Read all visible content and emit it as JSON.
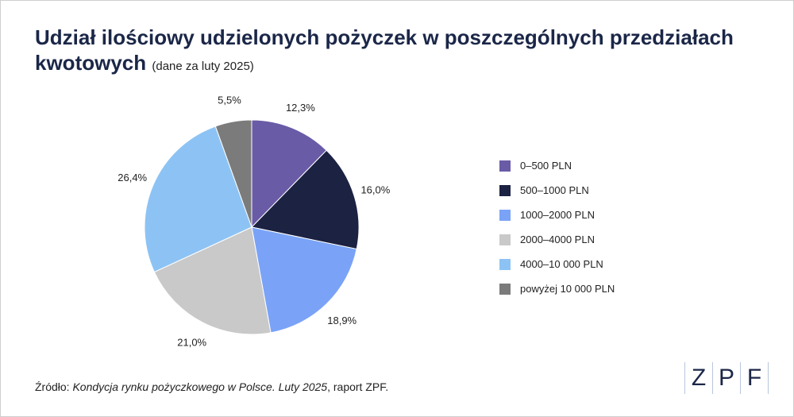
{
  "title": {
    "main": "Udział ilościowy udzielonych pożyczek w poszczególnych przedziałach kwotowych",
    "sub": "(dane za luty 2025)"
  },
  "chart_data": {
    "type": "pie",
    "slices": [
      {
        "label": "0–500 PLN",
        "value": 12.3,
        "value_label": "12,3%",
        "color": "#6a5ba7"
      },
      {
        "label": "500–1000 PLN",
        "value": 16.0,
        "value_label": "16,0%",
        "color": "#1b2242"
      },
      {
        "label": "1000–2000 PLN",
        "value": 18.9,
        "value_label": "18,9%",
        "color": "#7aa3f7"
      },
      {
        "label": "2000–4000 PLN",
        "value": 21.0,
        "value_label": "21,0%",
        "color": "#c9c9c9"
      },
      {
        "label": "4000–10 000 PLN",
        "value": 26.4,
        "value_label": "26,4%",
        "color": "#8dc3f4"
      },
      {
        "label": "powyżej 10 000 PLN",
        "value": 5.5,
        "value_label": "5,5%",
        "color": "#7b7b7b"
      }
    ],
    "start_angle": "12 o'clock",
    "direction": "clockwise",
    "legend_position": "right"
  },
  "source": {
    "prefix": "Źródło: ",
    "title": "Kondycja rynku pożyczkowego w Polsce. Luty 2025",
    "suffix": ", raport ZPF."
  },
  "logo": {
    "letters": [
      "Z",
      "P",
      "F"
    ]
  }
}
